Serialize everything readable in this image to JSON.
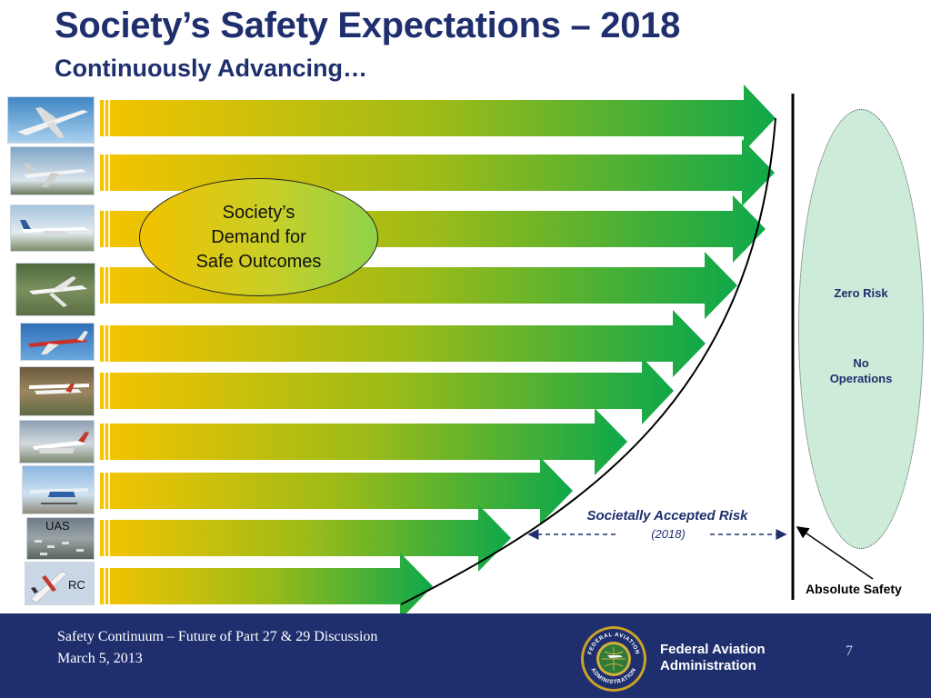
{
  "slide": {
    "title": "Society’s Safety Expectations – 2018",
    "subtitle": "Continuously Advancing…"
  },
  "diagram": {
    "demand_line1": "Society’s",
    "demand_line2": "Demand for",
    "demand_line3": "Safe Outcomes",
    "zero_risk": "Zero Risk",
    "no_operations_1": "No",
    "no_operations_2": "Operations",
    "societally_accepted_risk": "Societally Accepted Risk",
    "risk_year": "(2018)",
    "absolute_safety": "Absolute Safety",
    "uas_label": "UAS",
    "rc_label": "RC",
    "aircraft_thumbnails": [
      "airliner",
      "business-jet",
      "turboprop",
      "light-jet",
      "very-light-jet",
      "piston-aircraft",
      "light-sport-aircraft",
      "experimental-aircraft",
      "uas",
      "rc-model"
    ]
  },
  "footer": {
    "line1": "Safety Continuum – Future of Part 27 & 29 Discussion",
    "line2": "March 5, 2013",
    "agency_line1": "Federal Aviation",
    "agency_line2": "Administration",
    "page_number": "7",
    "seal_text_top": "FEDERAL AVIATION",
    "seal_text_bottom": "ADMINISTRATION"
  },
  "colors": {
    "title": "#1f2f6e",
    "footer_background": "#1f2f6e",
    "arrow_start": "#f5c400",
    "arrow_end": "#0fa84a",
    "oval_fill": "#ccebd8"
  }
}
